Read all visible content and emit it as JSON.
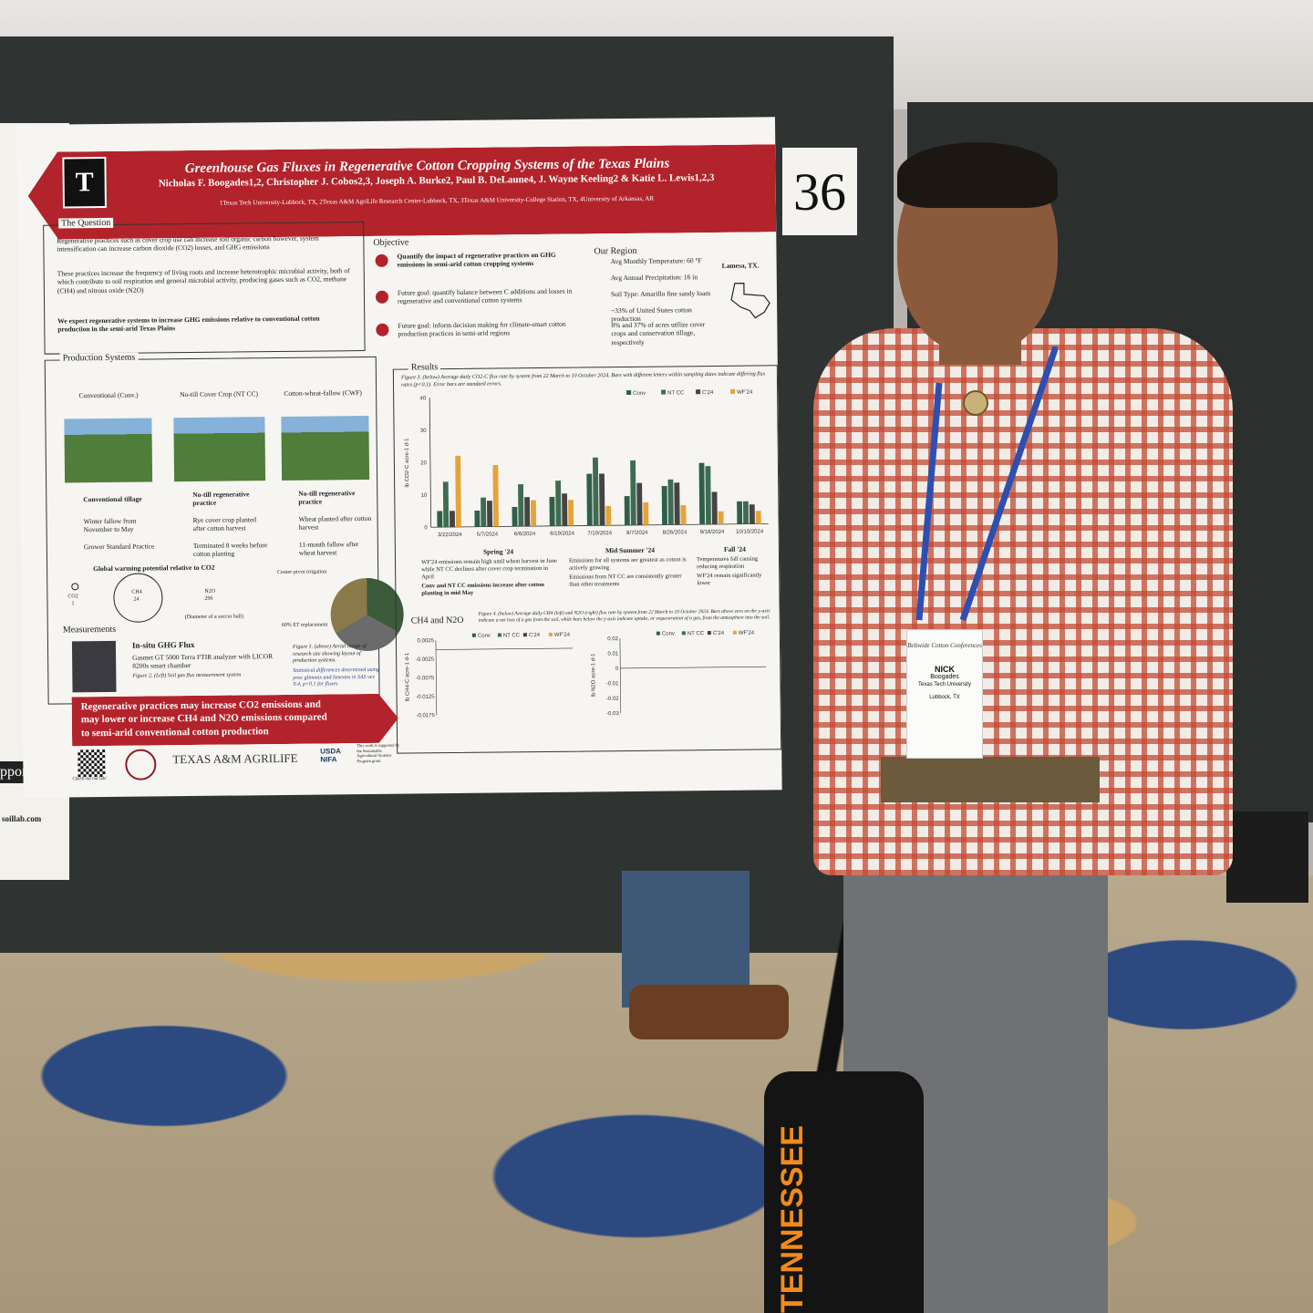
{
  "booth_number": "36",
  "poster": {
    "title": "Greenhouse Gas Fluxes in Regenerative Cotton Cropping Systems of the Texas Plains",
    "authors": "Nicholas F. Boogades1,2, Christopher J. Cobos2,3, Joseph A. Burke2, Paul B. DeLaune4, J. Wayne Keeling2 & Katie L. Lewis1,2,3",
    "affiliations": "1Texas Tech University-Lubbock, TX, 2Texas A&M AgriLife Research Center-Lubbock, TX, 3Texas A&M University-College Station, TX, 4University of Arkansas, AR",
    "sections": {
      "question": {
        "heading": "The Question",
        "points": [
          "Regenerative practices such as cover crop use can increase soil organic carbon however, system intensification can increase carbon dioxide (CO2) losses, and GHG emissions",
          "These practices increase the frequency of living roots and increase heterotrophic microbial activity, both of which contribute to soil respiration and general microbial activity, producing gases such as CO2, methane (CH4) and nitrous oxide (N2O)",
          "We expect regenerative systems to increase GHG emissions relative to conventional cotton production in the semi-arid Texas Plains"
        ]
      },
      "objective": {
        "heading": "Objective",
        "points": [
          "Quantify the impact of regenerative practices on GHG emissions in semi-arid cotton cropping systems",
          "Future goal: quantify balance between C additions and losses in regenerative and conventional cotton systems",
          "Future goal: inform decision making for climate-smart cotton production practices in semi-arid regions"
        ]
      },
      "region": {
        "heading": "Our Region",
        "location": "Lamesa, TX.",
        "items": [
          "Avg Monthly Temperature: 60 °F",
          "Avg Annual Precipitation: 16 in",
          "Soil Type: Amarillo fine sandy loam",
          "~33% of United States cotton production",
          "8% and 37% of acres utilize cover crops and conservation tillage, respectively"
        ]
      },
      "systems": {
        "heading": "Production Systems",
        "columns": [
          {
            "name": "Conventional (Conv.)",
            "features": [
              "Conventional tillage",
              "Winter fallow from November to May",
              "Grower Standard Practice"
            ]
          },
          {
            "name": "No-till Cover Crop (NT CC)",
            "features": [
              "No-till regenerative practice",
              "Rye cover crop planted after cotton harvest",
              "Terminated 8 weeks before cotton planting"
            ]
          },
          {
            "name": "Cotton-wheat-fallow (CWF)",
            "features": [
              "No-till regenerative practice",
              "Wheat planted after cotton harvest",
              "11-month fallow after wheat harvest"
            ]
          }
        ],
        "gwp_heading": "Global warming potential relative to CO2",
        "gwp": [
          {
            "gas": "CO2",
            "value": "1"
          },
          {
            "gas": "CH4",
            "value": "24"
          },
          {
            "gas": "N2O",
            "value": "296"
          }
        ],
        "gwp_note": "(Diameter of a soccer ball)",
        "irrigation_label": "Center-pivot irrigation",
        "et_label": "60% ET replacement",
        "figure_caption": "Figure 1. (above) Aerial image of research site showing layout of production systems.",
        "stats_note": "Statistical differences determined using proc glimmix and lsmeans in SAS ver. 9.4, p<0.1 for fluxes"
      },
      "measurements": {
        "heading": "Measurements",
        "title": "In-situ GHG Flux",
        "text": "Gasmet GT 5000 Terra FTIR analyzer with LICOR 8200s smart chamber",
        "caption": "Figure 2. (Left) Soil gas flux measurement system"
      },
      "results": {
        "heading": "Results",
        "fig3_caption": "Figure 3. (below) Average daily CO2-C flux rate by system from 22 March to 10 October 2024. Bars with different letters within sampling dates indicate differing flux rates (p<0.1). Error bars are standard errors.",
        "seasons": [
          {
            "name": "Spring '24",
            "notes": [
              "WF'24 emissions remain high until wheat harvest in June while NT CC declines after cover crop termination in April",
              "Conv and NT CC emissions increase after cotton planting in mid May"
            ]
          },
          {
            "name": "Mid Summer '24",
            "notes": [
              "Emissions for all systems are greatest as cotton is actively growing",
              "Emissions from NT CC are consistently greater than other treatments"
            ]
          },
          {
            "name": "Fall '24",
            "notes": [
              "Temperatures fall causing reducing respiration",
              "WF'24 remain significantly lower"
            ]
          }
        ],
        "fig4_heading": "CH4 and N2O",
        "fig4_caption": "Figure 4. (below) Average daily CH4 (left) and N2O (right) flux rate by system from 22 March to 10 October 2024. Bars above zero on the y-axis indicate a net loss of a gas from the soil, while bars below the y-axis indicate uptake, or sequestration of a gas, from the atmosphere into the soil."
      },
      "takeaway": [
        "Regenerative practices may increase CO2 emissions and",
        "may lower or increase CH4 and N2O emissions compared",
        "to semi-arid conventional cotton production"
      ],
      "footer": {
        "qr_caption": "Check out our lab!",
        "logos": [
          "TEXAS A&M AGRILIFE",
          "USDA NIFA"
        ],
        "funding": "This work is supported by the Sustainable Agricultural Systems Program grant"
      }
    },
    "chart_data": [
      {
        "type": "bar",
        "ylabel": "lb CO2-C acre-1 d-1",
        "ylim": [
          0,
          40
        ],
        "yticks": [
          0,
          10,
          20,
          30,
          40
        ],
        "categories": [
          "3/22/2024",
          "5/7/2024",
          "6/6/2024",
          "6/19/2024",
          "7/10/2024",
          "8/7/2024",
          "8/26/2024",
          "9/16/2024",
          "10/10/2024"
        ],
        "series": [
          {
            "name": "Conv",
            "color": "#2f5f4a",
            "values": [
              5,
              5,
              6,
              9,
              16,
              9,
              12,
              19,
              7
            ]
          },
          {
            "name": "NT CC",
            "color": "#2f5f4a",
            "values": [
              14,
              9,
              13,
              14,
              21,
              20,
              14,
              18,
              7
            ]
          },
          {
            "name": "C'24",
            "color": "#3d3d3d",
            "values": [
              5,
              8,
              9,
              10,
              16,
              13,
              13,
              10,
              6
            ]
          },
          {
            "name": "WF'24",
            "color": "#e4a43a",
            "values": [
              22,
              19,
              8,
              8,
              6,
              7,
              6,
              4,
              4
            ]
          }
        ]
      },
      {
        "type": "bar",
        "ylabel": "lb CH4-C acre-1 d-1",
        "ylim": [
          -0.0175,
          0.0
        ],
        "yticks": [
          0.0025,
          -0.0025,
          -0.0075,
          -0.0125,
          -0.0175
        ],
        "legend": [
          "Conv",
          "NT CC",
          "C'24",
          "WF'24"
        ]
      },
      {
        "type": "bar",
        "ylabel": "lb N2O acre-1 d-1",
        "ylim": [
          -0.03,
          0.02
        ],
        "yticks": [
          0.02,
          0.01,
          0.0,
          -0.01,
          -0.02,
          -0.03
        ],
        "legend": [
          "Conv",
          "NT CC",
          "C'24",
          "WF'24"
        ]
      }
    ]
  },
  "badge": {
    "org": "Beltwide Cotton Conferences",
    "first_name": "NICK",
    "last_name": "Boogades",
    "university": "Texas Tech University",
    "city": "Lubbock, TX"
  },
  "bag_text": "TENNESSEE",
  "left_poster": {
    "support_label": "pport",
    "site": "soillab.com"
  }
}
